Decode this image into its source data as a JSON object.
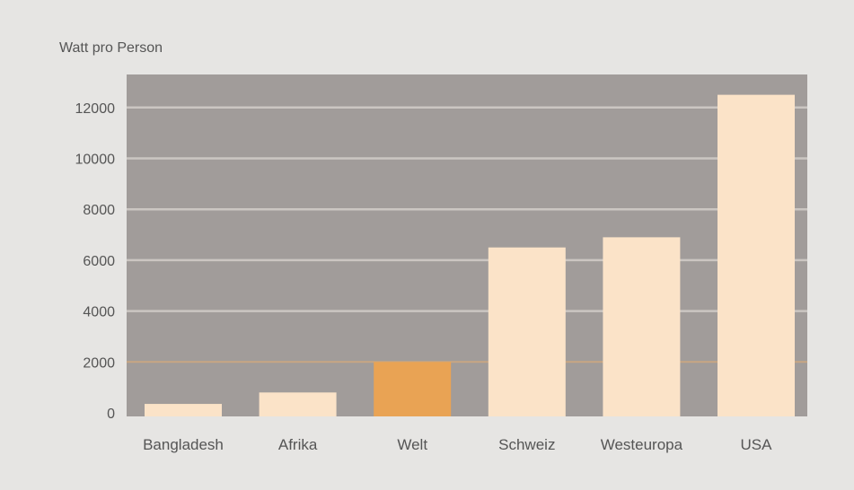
{
  "chart_data": {
    "type": "bar",
    "ylabel": "Watt pro Person",
    "categories": [
      "Bangladesh",
      "Afrika",
      "Welt",
      "Schweiz",
      "Westeuropa",
      "USA"
    ],
    "values": [
      350,
      800,
      2000,
      6500,
      6900,
      12500
    ],
    "yticks": [
      0,
      2000,
      4000,
      6000,
      8000,
      10000,
      12000
    ],
    "ylim": [
      0,
      13300
    ],
    "highlight_category": "Welt",
    "highlight_tick": 2000,
    "grid": true,
    "legend": "none",
    "colors": {
      "plot_background": "#a19c9a",
      "bar": "#fbe3c8",
      "bar_highlight": "#e9a354",
      "gridline": "#cbc6c2",
      "highlight_line": "#c8a683",
      "highlight_tick_text": "#d9a073",
      "text": "#555555"
    }
  }
}
